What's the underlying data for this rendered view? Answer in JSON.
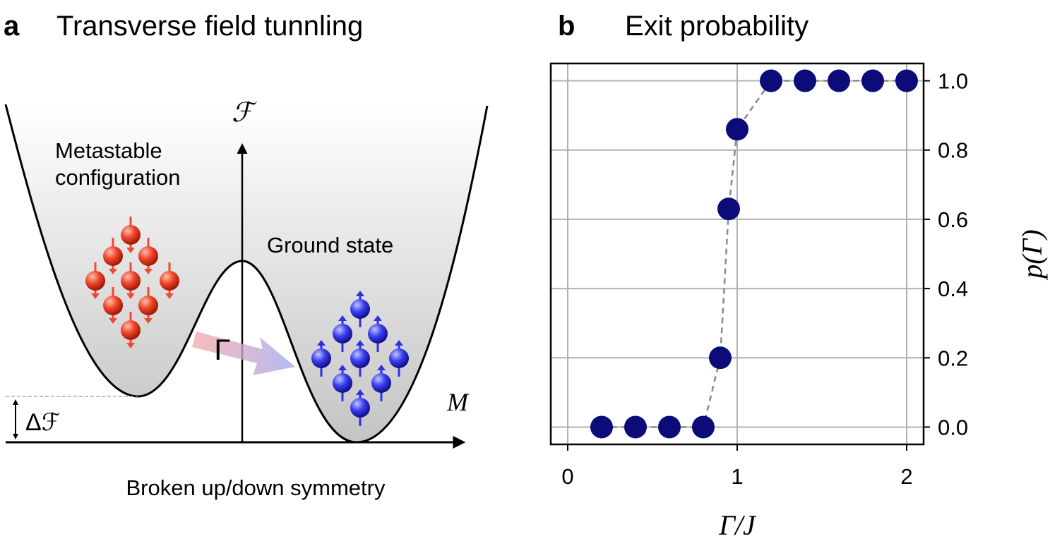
{
  "panel_a": {
    "letter": "a",
    "title": "Transverse field tunnling",
    "metastable_label": [
      "Metastable",
      "configuration"
    ],
    "ground_label": "Ground state",
    "gamma_label": "Γ",
    "f_axis_label": "ℱ",
    "m_axis_label": "M",
    "delta_f_label": "Δℱ",
    "x_caption": "Broken up/down symmetry"
  },
  "chart_data": {
    "type": "scatter",
    "letter": "b",
    "title": "Exit probability",
    "x_label": "Γ/J",
    "y_label": "p(Γ)",
    "x": [
      0.2,
      0.4,
      0.6,
      0.8,
      0.9,
      0.95,
      1.0,
      1.2,
      1.4,
      1.6,
      1.8,
      2.0
    ],
    "values": [
      0,
      0,
      0,
      0,
      0.2,
      0.63,
      0.86,
      1.0,
      1.0,
      1.0,
      1.0,
      1.0
    ],
    "color": "#0b0b7a",
    "line_color": "#888888",
    "xlim": [
      -0.1,
      2.1
    ],
    "ylim": [
      -0.05,
      1.05
    ],
    "xticks": [
      0,
      1,
      2
    ],
    "yticks": [
      {
        "value": 0,
        "label": "0.0"
      },
      0.2,
      0.4,
      0.6,
      0.8,
      {
        "value": 1,
        "label": "1.0"
      }
    ],
    "grid": true
  }
}
